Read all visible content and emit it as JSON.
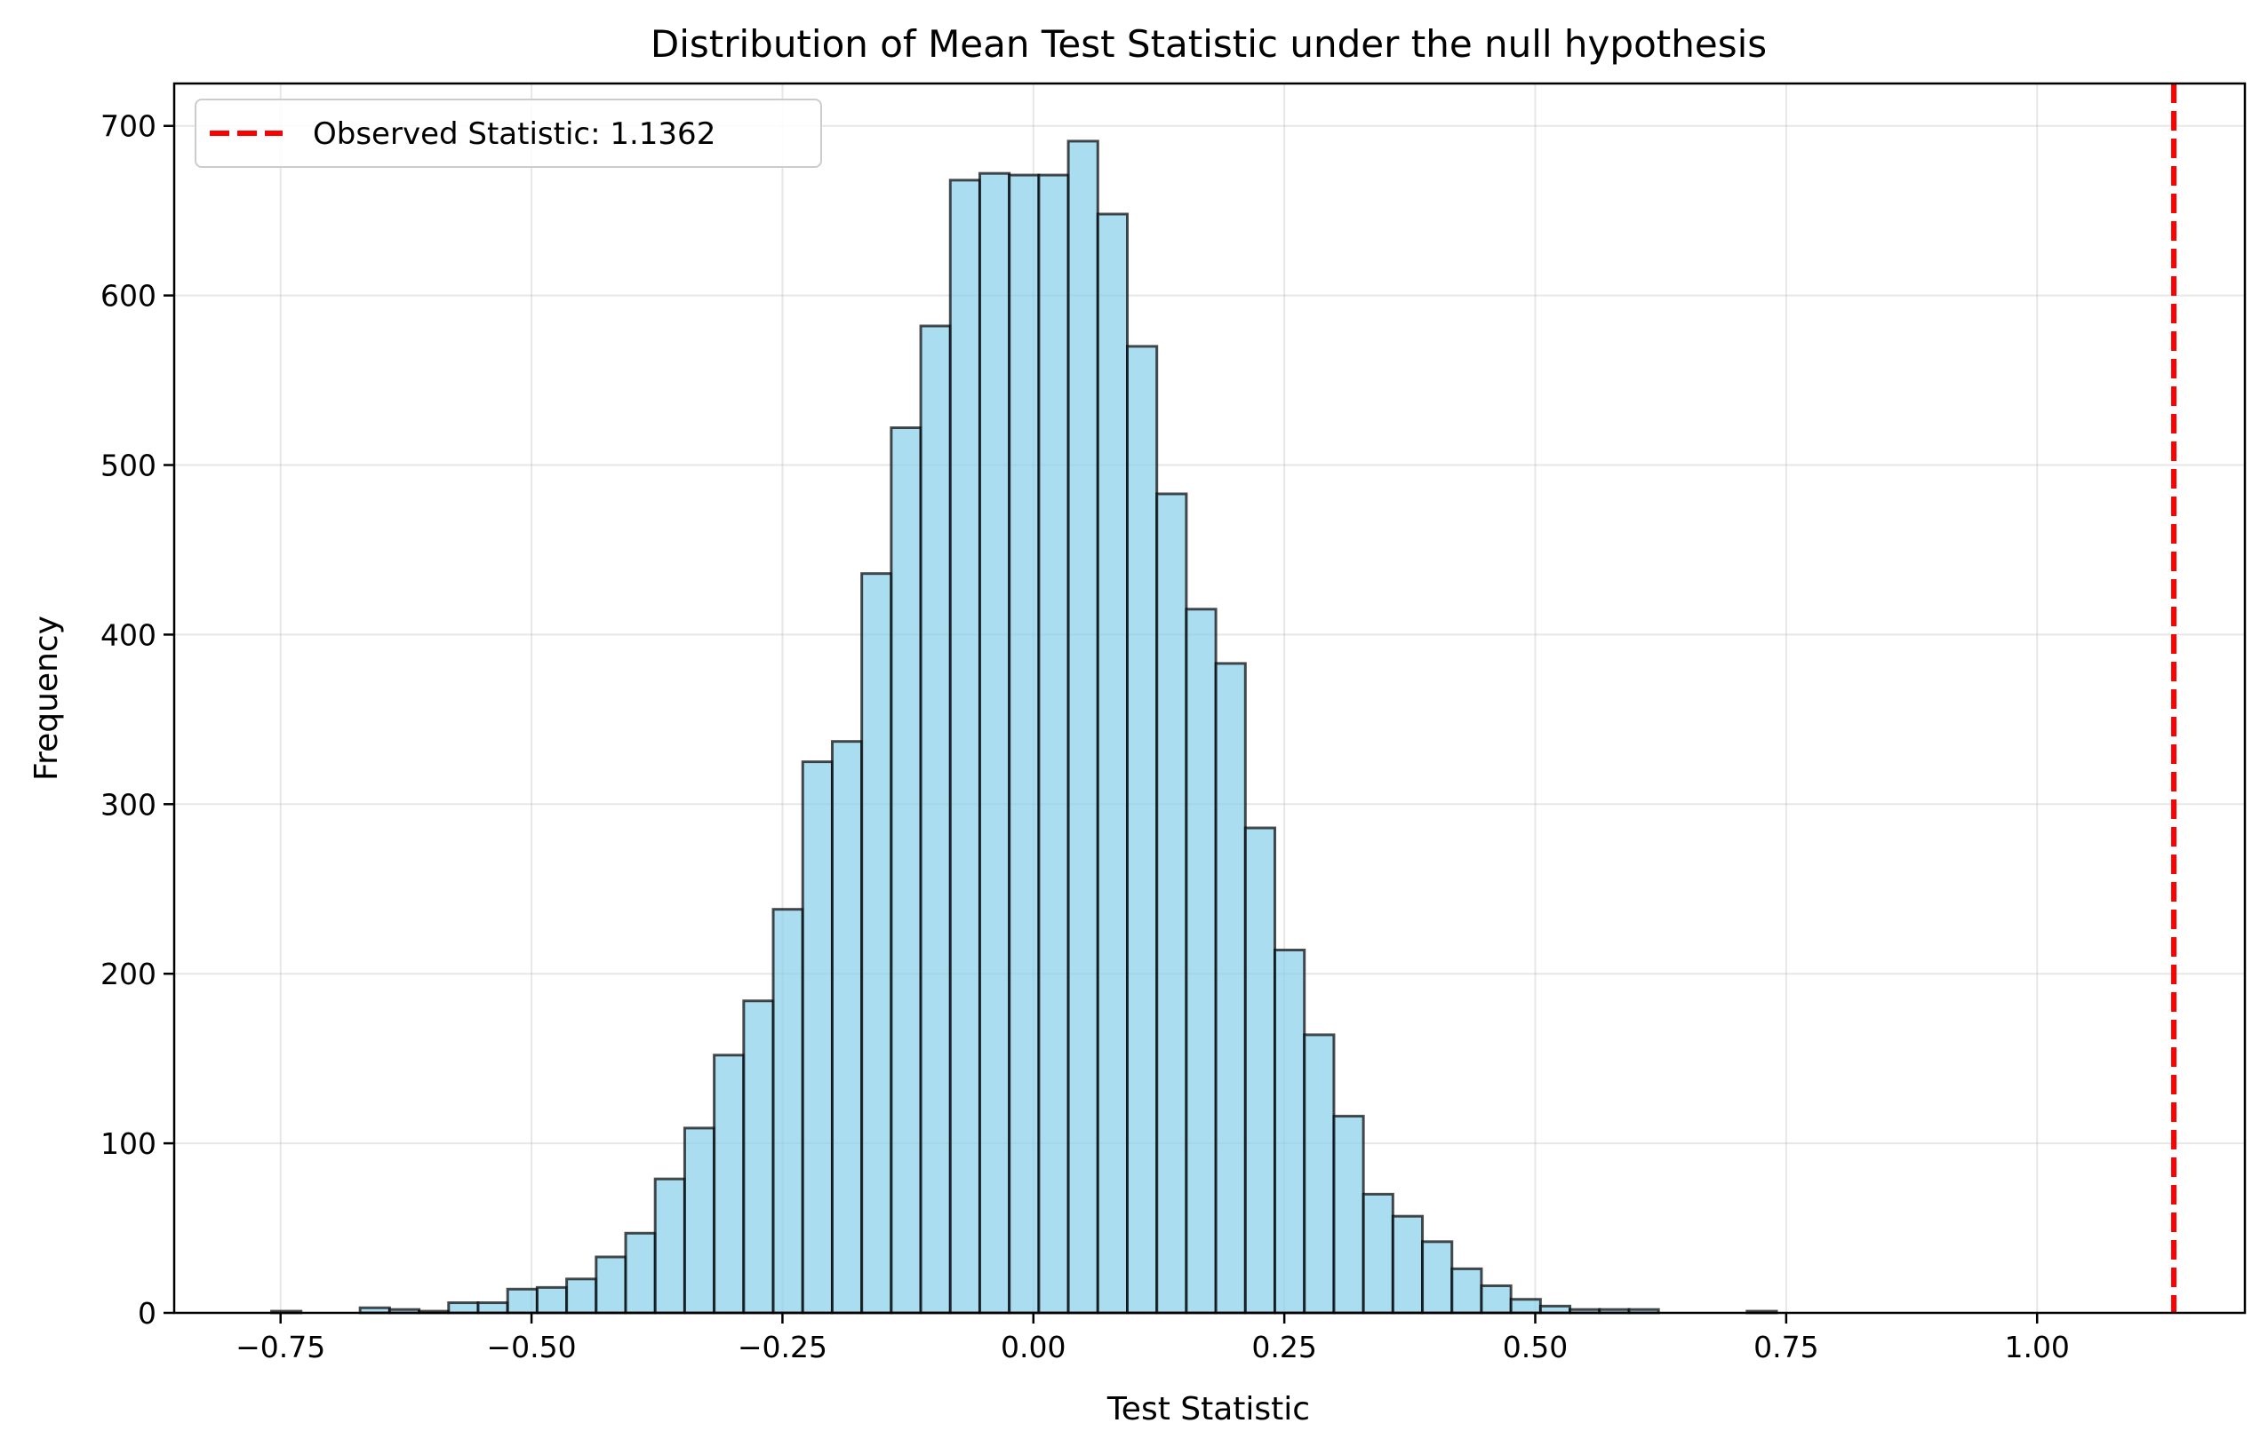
{
  "chart_data": {
    "type": "bar",
    "title": "Distribution of Mean Test Statistic under the null hypothesis",
    "xlabel": "Test Statistic",
    "ylabel": "Frequency",
    "xlim": [
      -0.856,
      1.207
    ],
    "ylim": [
      0,
      725
    ],
    "xticks": [
      -0.75,
      -0.5,
      -0.25,
      0.0,
      0.25,
      0.5,
      0.75,
      1.0
    ],
    "xtick_labels": [
      "−0.75",
      "−0.50",
      "−0.25",
      "0.00",
      "0.25",
      "0.50",
      "0.75",
      "1.00"
    ],
    "yticks": [
      0,
      100,
      200,
      300,
      400,
      500,
      600,
      700
    ],
    "ytick_labels": [
      "0",
      "100",
      "200",
      "300",
      "400",
      "500",
      "600",
      "700"
    ],
    "grid": true,
    "bin_start": -0.759,
    "bin_width": 0.0294,
    "values": [
      1,
      0,
      0,
      3,
      2,
      1,
      6,
      6,
      14,
      15,
      20,
      33,
      47,
      79,
      109,
      152,
      184,
      238,
      325,
      337,
      436,
      522,
      582,
      668,
      672,
      671,
      671,
      691,
      648,
      570,
      483,
      415,
      383,
      286,
      214,
      164,
      116,
      70,
      57,
      42,
      26,
      16,
      8,
      4,
      2,
      2,
      2,
      0,
      0,
      0,
      1
    ],
    "bar_color": "#87CEEB",
    "edge_color": "#000000",
    "observed_statistic": {
      "value": 1.1362,
      "label": "Observed Statistic: 1.1362",
      "color": "#FF0000"
    },
    "legend_position": "top-left"
  }
}
